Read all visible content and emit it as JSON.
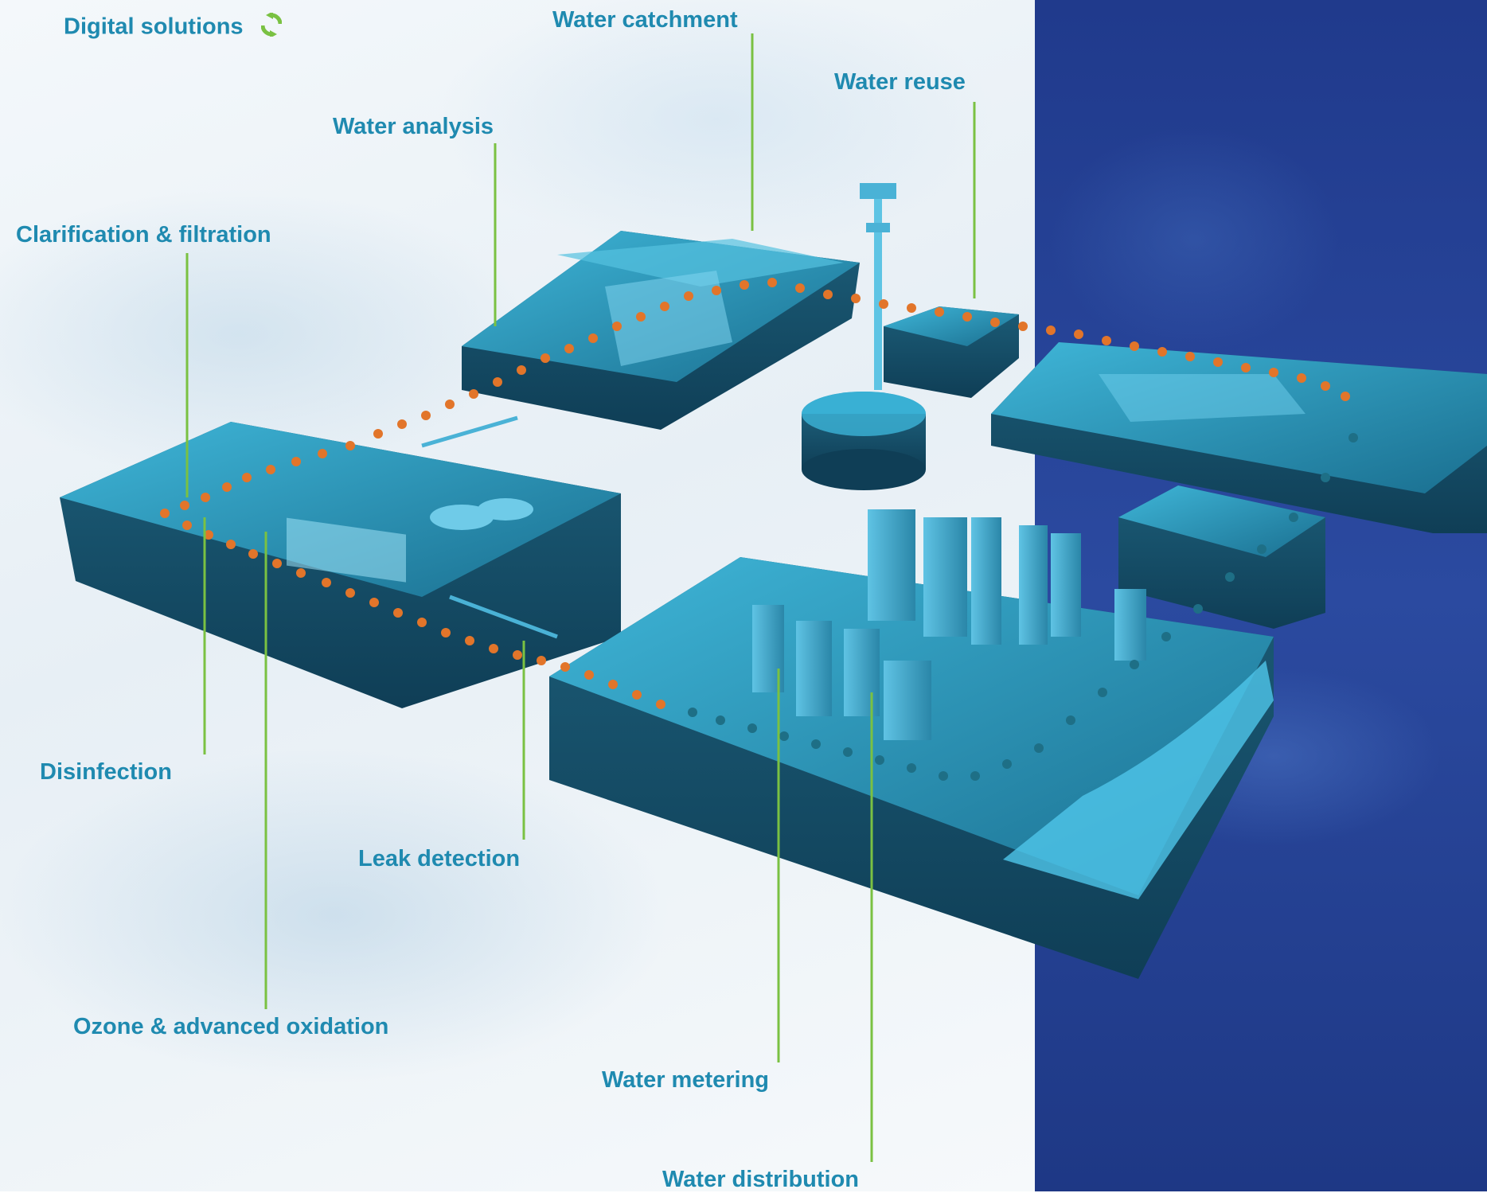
{
  "labels": {
    "digital_solutions": "Digital solutions",
    "water_catchment": "Water catchment",
    "water_reuse": "Water reuse",
    "water_analysis": "Water analysis",
    "clarification_filtration": "Clarification & filtration",
    "disinfection": "Disinfection",
    "leak_detection": "Leak detection",
    "ozone_oxidation": "Ozone & advanced oxidation",
    "water_metering": "Water metering",
    "water_distribution": "Water distribution"
  },
  "icons": {
    "digital_solutions": "recycle-arrows-icon"
  },
  "colors": {
    "label_text": "#1f8ab0",
    "leader_lines": "#7ac142",
    "route_dots": "#e2752a",
    "right_panel": "#2b4aa0"
  }
}
